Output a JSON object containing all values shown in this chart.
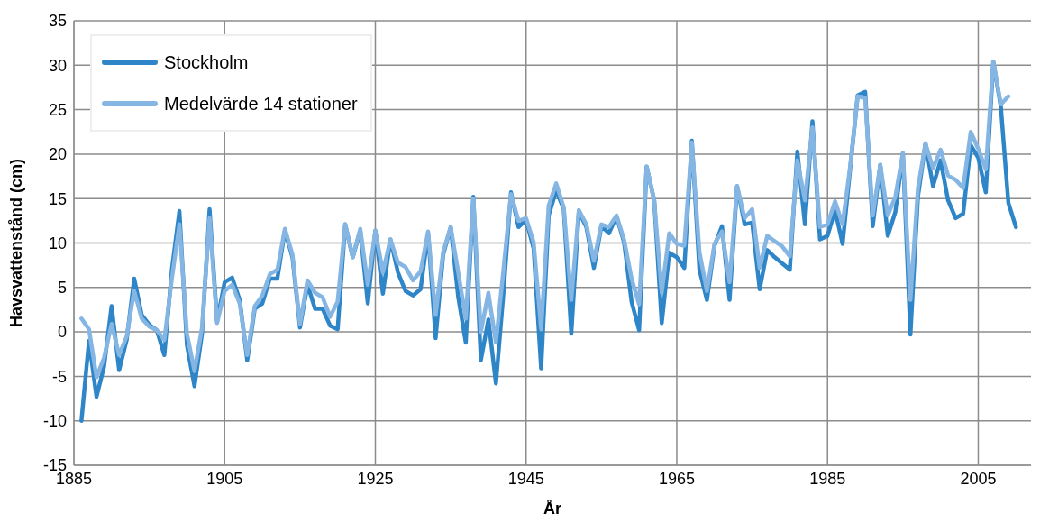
{
  "chart_data": {
    "type": "line",
    "xlabel": "År",
    "ylabel": "Havsvattenstånd (cm)",
    "x": [
      1886,
      1887,
      1888,
      1889,
      1890,
      1891,
      1892,
      1893,
      1894,
      1895,
      1896,
      1897,
      1898,
      1899,
      1900,
      1901,
      1902,
      1903,
      1904,
      1905,
      1906,
      1907,
      1908,
      1909,
      1910,
      1911,
      1912,
      1913,
      1914,
      1915,
      1916,
      1917,
      1918,
      1919,
      1920,
      1921,
      1922,
      1923,
      1924,
      1925,
      1926,
      1927,
      1928,
      1929,
      1930,
      1931,
      1932,
      1933,
      1934,
      1935,
      1936,
      1937,
      1938,
      1939,
      1940,
      1941,
      1942,
      1943,
      1944,
      1945,
      1946,
      1947,
      1948,
      1949,
      1950,
      1951,
      1952,
      1953,
      1954,
      1955,
      1956,
      1957,
      1958,
      1959,
      1960,
      1961,
      1962,
      1963,
      1964,
      1965,
      1966,
      1967,
      1968,
      1969,
      1970,
      1971,
      1972,
      1973,
      1974,
      1975,
      1976,
      1977,
      1978,
      1979,
      1980,
      1981,
      1982,
      1983,
      1984,
      1985,
      1986,
      1987,
      1988,
      1989,
      1990,
      1991,
      1992,
      1993,
      1994,
      1995,
      1996,
      1997,
      1998,
      1999,
      2000,
      2001,
      2002,
      2003,
      2004,
      2005,
      2006,
      2007,
      2008,
      2009,
      2010
    ],
    "series": [
      {
        "name": "Stockholm",
        "color": "#2e86c8",
        "values": [
          -10,
          -1,
          -7.3,
          -3.9,
          2.9,
          -4.3,
          -0.9,
          6,
          1.9,
          0.8,
          0.2,
          -2.6,
          7,
          13.6,
          -1.5,
          -6.1,
          -0.2,
          13.8,
          1.2,
          5.6,
          6.1,
          3.6,
          -3.2,
          2.6,
          3.2,
          6,
          6,
          11.4,
          8.4,
          0.5,
          5.3,
          2.6,
          2.6,
          0.7,
          0.3,
          12.1,
          8.4,
          11.4,
          3.2,
          11.4,
          4.3,
          10.4,
          6.7,
          4.6,
          4.1,
          4.8,
          11.1,
          -0.7,
          8.7,
          11.8,
          3.9,
          -1.2,
          15.2,
          -3.2,
          1.4,
          -5.8,
          4.4,
          15.7,
          11.8,
          12.6,
          9.4,
          -4.1,
          13.1,
          15.9,
          13.8,
          -0.2,
          13.5,
          11.8,
          7.2,
          11.9,
          11.1,
          13,
          10.1,
          3.4,
          0.2,
          18.6,
          14.8,
          1,
          8.9,
          8.4,
          7.2,
          21.5,
          7,
          3.6,
          9.7,
          11.9,
          3.6,
          16.4,
          12.1,
          12.3,
          4.8,
          9.2,
          8.4,
          7.7,
          7,
          20.3,
          12.1,
          23.7,
          10.4,
          10.8,
          13.7,
          9.9,
          18.3,
          26.6,
          27,
          11.9,
          18.8,
          10.8,
          13.5,
          20.1,
          -0.3,
          15.2,
          21.2,
          16.4,
          19.3,
          14.8,
          12.8,
          13.3,
          21,
          19.6,
          15.7,
          30.4,
          25.3,
          14.5,
          11.8
        ]
      },
      {
        "name": "Medelvärde 14 stationer",
        "color": "#85b6e3",
        "values": [
          1.5,
          0.3,
          -5.1,
          -2.9,
          0.9,
          -2.6,
          -0.5,
          4.6,
          1.5,
          0.6,
          0.2,
          -0.9,
          6,
          12.1,
          -0.2,
          -4.4,
          0.5,
          12.8,
          1,
          4.6,
          5.3,
          3.2,
          -2.6,
          2.9,
          4.1,
          6.5,
          7,
          11.6,
          8.7,
          0.9,
          5.8,
          4.4,
          3.9,
          1.7,
          3.4,
          12.1,
          8.4,
          11.6,
          5.3,
          11.4,
          6.7,
          10.4,
          7.8,
          7.3,
          5.8,
          6.8,
          11.3,
          1.9,
          9,
          11.8,
          6.7,
          1.5,
          15,
          0,
          4.4,
          -1.2,
          7,
          15.5,
          12.5,
          12.8,
          10.1,
          0.3,
          14.2,
          16.7,
          14,
          3.6,
          13.7,
          12.1,
          8,
          12.1,
          11.8,
          13.1,
          10.4,
          6,
          3.1,
          18.6,
          14.8,
          4.4,
          11.1,
          9.9,
          9.7,
          21.3,
          9,
          4.6,
          9.9,
          11.3,
          5.6,
          16.4,
          12.8,
          13.8,
          7.2,
          10.8,
          10.2,
          9.6,
          8.5,
          19.3,
          14.8,
          23,
          11.8,
          12.1,
          14.7,
          12.1,
          18.6,
          26.5,
          26.3,
          13.1,
          18.8,
          13.1,
          15.2,
          20.1,
          3.6,
          16.2,
          21.2,
          18.4,
          20.5,
          17.6,
          17.1,
          16.2,
          22.5,
          20.6,
          18.3,
          30.4,
          25.6,
          26.5,
          null
        ]
      }
    ],
    "xlim": [
      1885,
      2012
    ],
    "xticks": [
      1885,
      1905,
      1925,
      1945,
      1965,
      1985,
      2005
    ],
    "ylim": [
      -15,
      35
    ],
    "yticks": [
      -15,
      -10,
      -5,
      0,
      5,
      10,
      15,
      20,
      25,
      30,
      35
    ],
    "grid": true,
    "legend": "top left",
    "marker": "none",
    "line_style": "solid"
  }
}
